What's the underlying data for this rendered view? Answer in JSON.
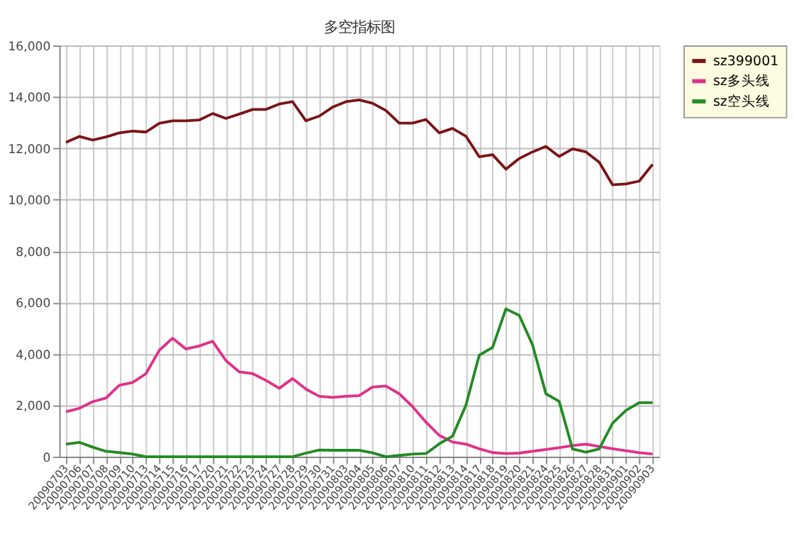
{
  "chart_data": {
    "type": "line",
    "title": "多空指标图",
    "categories": [
      "20090703",
      "20090706",
      "20090707",
      "20090708",
      "20090709",
      "20090710",
      "20090713",
      "20090714",
      "20090715",
      "20090716",
      "20090717",
      "20090720",
      "20090721",
      "20090722",
      "20090723",
      "20090724",
      "20090727",
      "20090728",
      "20090729",
      "20090730",
      "20090731",
      "20090803",
      "20090804",
      "20090805",
      "20090806",
      "20090807",
      "20090810",
      "20090811",
      "20090812",
      "20090813",
      "20090814",
      "20090817",
      "20090818",
      "20090819",
      "20090820",
      "20090821",
      "20090824",
      "20090825",
      "20090826",
      "20090827",
      "20090828",
      "20090831",
      "20090901",
      "20090902",
      "20090903"
    ],
    "series": [
      {
        "name": "sz399001",
        "color": "#7b1416",
        "values": [
          12230,
          12460,
          12320,
          12440,
          12600,
          12670,
          12630,
          12970,
          13070,
          13070,
          13100,
          13350,
          13160,
          13330,
          13510,
          13510,
          13720,
          13810,
          13070,
          13250,
          13600,
          13810,
          13880,
          13750,
          13470,
          12980,
          12980,
          13120,
          12600,
          12770,
          12470,
          11670,
          11750,
          11190,
          11600,
          11860,
          12070,
          11680,
          11980,
          11860,
          11460,
          10580,
          10610,
          10720,
          11370
        ]
      },
      {
        "name": "sz多头线",
        "color": "#e0308a",
        "values": [
          1750,
          1880,
          2140,
          2280,
          2780,
          2890,
          3230,
          4140,
          4610,
          4190,
          4310,
          4490,
          3740,
          3300,
          3230,
          2970,
          2660,
          3040,
          2630,
          2350,
          2310,
          2350,
          2380,
          2710,
          2750,
          2450,
          1950,
          1350,
          830,
          570,
          490,
          310,
          160,
          120,
          140,
          210,
          280,
          350,
          430,
          490,
          400,
          310,
          230,
          160,
          100
        ]
      },
      {
        "name": "sz空头线",
        "color": "#228b22",
        "values": [
          490,
          560,
          370,
          210,
          160,
          100,
          0,
          0,
          0,
          0,
          0,
          0,
          0,
          0,
          0,
          0,
          0,
          0,
          140,
          260,
          250,
          250,
          250,
          150,
          0,
          50,
          100,
          120,
          500,
          800,
          2000,
          3950,
          4250,
          5750,
          5500,
          4350,
          2450,
          2150,
          300,
          180,
          300,
          1300,
          1800,
          2100,
          2100
        ]
      }
    ],
    "ylim": [
      0,
      16000
    ],
    "yticks": [
      {
        "value": 0,
        "label": "0"
      },
      {
        "value": 2000,
        "label": "2,000"
      },
      {
        "value": 4000,
        "label": "4,000"
      },
      {
        "value": 6000,
        "label": "6,000"
      },
      {
        "value": 8000,
        "label": "8,000"
      },
      {
        "value": 10000,
        "label": "10,000"
      },
      {
        "value": 12000,
        "label": "12,000"
      },
      {
        "value": 14000,
        "label": "14,000"
      },
      {
        "value": 16000,
        "label": "16,000"
      }
    ],
    "grid": true,
    "legend": "top right",
    "marker": "none",
    "line_style": "solid"
  }
}
